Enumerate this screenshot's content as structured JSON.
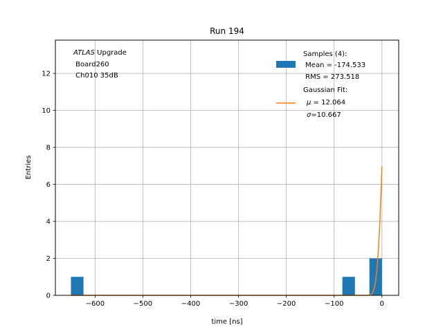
{
  "chart_data": {
    "type": "bar",
    "title": "Run 194",
    "xlabel": "time [ns]",
    "ylabel": "Entries",
    "xlim": [
      -683,
      35
    ],
    "ylim": [
      0,
      13.8
    ],
    "grid": true,
    "xticks": [
      -600,
      -500,
      -400,
      -300,
      -200,
      -100,
      0
    ],
    "xtick_labels": [
      "−600",
      "−500",
      "−400",
      "−300",
      "−200",
      "−100",
      "0"
    ],
    "yticks": [
      0,
      2,
      4,
      6,
      8,
      10,
      12
    ],
    "ytick_labels": [
      "0",
      "2",
      "4",
      "6",
      "8",
      "10",
      "12"
    ],
    "bar_color": "#1f77b4",
    "fit_color": "#ff7f0e",
    "bins": [
      {
        "x0": -650.5,
        "x1": -624.2,
        "value": 1
      },
      {
        "x0": -82.8,
        "x1": -56.5,
        "value": 1
      },
      {
        "x0": -26.3,
        "x1": 0,
        "value": 2
      }
    ],
    "fit": {
      "mu": 12.064,
      "sigma": 10.667,
      "amplitude": 13.2,
      "x_range": [
        -650,
        0
      ]
    },
    "annotation": {
      "italic": "ATLAS",
      "line1_rest": " Upgrade",
      "line2": " Board260",
      "line3": " Ch010 35dB"
    },
    "legend": {
      "position": "top-right",
      "samples": {
        "line1": "Samples (4):",
        "line2": " Mean = -174.533",
        "line3": " RMS = 273.518"
      },
      "fit": {
        "line1": "Gaussian Fit:",
        "mu_symbol": "μ",
        "mu_text": " = 12.064",
        "sigma_symbol": "σ",
        "sigma_text": "=10.667"
      }
    }
  }
}
